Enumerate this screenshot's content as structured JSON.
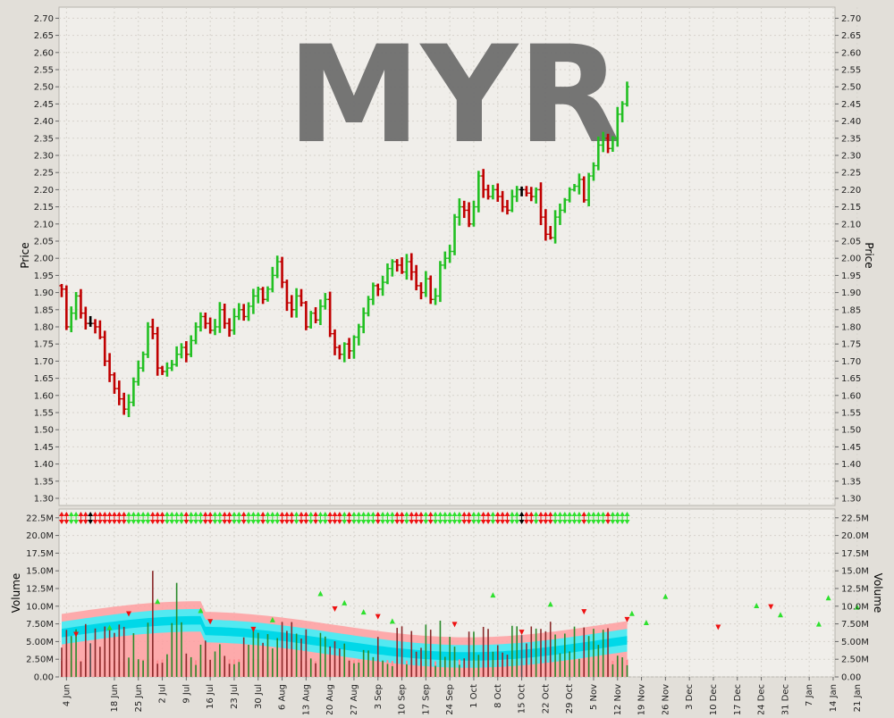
{
  "colors": {
    "background": "#e2dfd9",
    "plot_bg": "#f0eeea",
    "up": "#22c022",
    "down": "#c00000",
    "neutral": "#000000",
    "watermark": "#6e6e6e",
    "band_outer": "#ff9da0",
    "band_mid": "#40f0f8",
    "band_inner": "#00d8e8",
    "volume_bar": "#505050"
  },
  "chart_data": {
    "type": "ohlc",
    "watermark": "MYR",
    "price_axis": {
      "label": "Price",
      "ylim": [
        1.28,
        2.73
      ],
      "ticks": [
        "1.30",
        "1.35",
        "1.40",
        "1.45",
        "1.50",
        "1.55",
        "1.60",
        "1.65",
        "1.70",
        "1.75",
        "1.80",
        "1.85",
        "1.90",
        "1.95",
        "2.00",
        "2.05",
        "2.10",
        "2.15",
        "2.20",
        "2.25",
        "2.30",
        "2.35",
        "2.40",
        "2.45",
        "2.50",
        "2.55",
        "2.60",
        "2.65",
        "2.70"
      ]
    },
    "volume_axis": {
      "label": "Volume",
      "ylim": [
        0,
        23500000
      ],
      "ticks": [
        {
          "value": 0,
          "label": "0.00"
        },
        {
          "value": 2500000,
          "label": "2.50M"
        },
        {
          "value": 5000000,
          "label": "5.00M"
        },
        {
          "value": 7500000,
          "label": "7.50M"
        },
        {
          "value": 10000000,
          "label": "10.0M"
        },
        {
          "value": 12500000,
          "label": "12.5M"
        },
        {
          "value": 15000000,
          "label": "15.0M"
        },
        {
          "value": 17500000,
          "label": "17.5M"
        },
        {
          "value": 20000000,
          "label": "20.0M"
        },
        {
          "value": 22500000,
          "label": "22.5M"
        }
      ]
    },
    "x_ticks": [
      {
        "label": "4 Jun",
        "index": 1
      },
      {
        "label": "18 Jun",
        "index": 11
      },
      {
        "label": "25 Jun",
        "index": 16
      },
      {
        "label": "2 Jul",
        "index": 21
      },
      {
        "label": "9 Jul",
        "index": 26
      },
      {
        "label": "16 Jul",
        "index": 31
      },
      {
        "label": "23 Jul",
        "index": 36
      },
      {
        "label": "30 Jul",
        "index": 41
      },
      {
        "label": "6 Aug",
        "index": 46
      },
      {
        "label": "13 Aug",
        "index": 51
      },
      {
        "label": "20 Aug",
        "index": 56
      },
      {
        "label": "27 Aug",
        "index": 61
      },
      {
        "label": "3 Sep",
        "index": 66
      },
      {
        "label": "10 Sep",
        "index": 71
      },
      {
        "label": "17 Sep",
        "index": 76
      },
      {
        "label": "24 Sep",
        "index": 81
      },
      {
        "label": "1 Oct",
        "index": 86
      },
      {
        "label": "8 Oct",
        "index": 91
      },
      {
        "label": "15 Oct",
        "index": 96
      },
      {
        "label": "22 Oct",
        "index": 101
      },
      {
        "label": "29 Oct",
        "index": 106
      },
      {
        "label": "5 Nov",
        "index": 111
      },
      {
        "label": "12 Nov",
        "index": 116
      },
      {
        "label": "19 Nov",
        "index": 121
      },
      {
        "label": "26 Nov",
        "index": 126
      },
      {
        "label": "3 Dec",
        "index": 131
      },
      {
        "label": "10 Dec",
        "index": 136
      },
      {
        "label": "17 Dec",
        "index": 141
      },
      {
        "label": "24 Dec",
        "index": 146
      },
      {
        "label": "31 Dec",
        "index": 151
      },
      {
        "label": "7 Jan",
        "index": 156
      },
      {
        "label": "14 Jan",
        "index": 161
      },
      {
        "label": "21 Jan",
        "index": 166
      }
    ],
    "closes": [
      1.91,
      1.8,
      1.84,
      1.89,
      1.84,
      1.81,
      1.81,
      1.8,
      1.77,
      1.7,
      1.66,
      1.62,
      1.59,
      1.56,
      1.58,
      1.64,
      1.68,
      1.72,
      1.8,
      1.78,
      1.68,
      1.67,
      1.68,
      1.69,
      1.72,
      1.74,
      1.72,
      1.76,
      1.8,
      1.83,
      1.81,
      1.79,
      1.8,
      1.85,
      1.81,
      1.79,
      1.83,
      1.85,
      1.83,
      1.86,
      1.89,
      1.91,
      1.88,
      1.91,
      1.95,
      1.99,
      1.93,
      1.87,
      1.85,
      1.89,
      1.87,
      1.8,
      1.84,
      1.82,
      1.86,
      1.88,
      1.78,
      1.74,
      1.72,
      1.75,
      1.73,
      1.77,
      1.8,
      1.84,
      1.88,
      1.92,
      1.91,
      1.93,
      1.97,
      1.99,
      1.98,
      1.96,
      1.99,
      1.96,
      1.92,
      1.9,
      1.94,
      1.88,
      1.89,
      1.98,
      2.0,
      2.02,
      2.12,
      2.15,
      2.14,
      2.1,
      2.15,
      2.24,
      2.2,
      2.18,
      2.2,
      2.18,
      2.15,
      2.14,
      2.18,
      2.2,
      2.2,
      2.19,
      2.18,
      2.2,
      2.12,
      2.07,
      2.06,
      2.12,
      2.14,
      2.17,
      2.2,
      2.21,
      2.23,
      2.17,
      2.24,
      2.27,
      2.33,
      2.35,
      2.32,
      2.35,
      2.42,
      2.45,
      2.5
    ],
    "flags_up": [
      10,
      20,
      29,
      44,
      54,
      59,
      63,
      69,
      90,
      102,
      119,
      122,
      126,
      145,
      150,
      158,
      160,
      166
    ],
    "flags_down": [
      3,
      14,
      31,
      40,
      57,
      66,
      82,
      96,
      109,
      118,
      137,
      148
    ]
  }
}
